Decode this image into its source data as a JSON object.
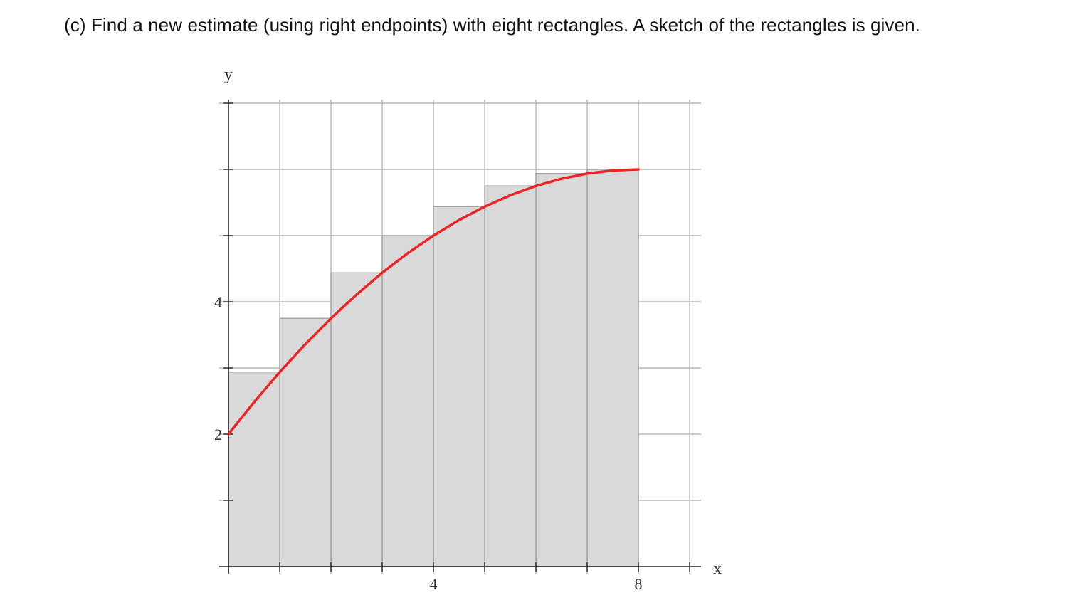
{
  "question": {
    "text": "(c) Find a new estimate (using right endpoints) with eight rectangles. A sketch of the rectangles is given."
  },
  "chart_data": {
    "type": "bar",
    "description_method": "right-endpoint Riemann sum",
    "xlabel": "x",
    "ylabel": "y",
    "xlim": [
      0,
      9
    ],
    "ylim": [
      0,
      7
    ],
    "x_ticks": [
      0,
      1,
      2,
      3,
      4,
      5,
      6,
      7,
      8,
      9
    ],
    "y_ticks": [
      0,
      1,
      2,
      3,
      4,
      5,
      6,
      7
    ],
    "x_tick_labels": [
      {
        "value": 4,
        "label": "4"
      },
      {
        "value": 8,
        "label": "8"
      }
    ],
    "y_tick_labels": [
      {
        "value": 2,
        "label": "2"
      },
      {
        "value": 4,
        "label": "4"
      }
    ],
    "grid": true,
    "rectangles": [
      {
        "x0": 0,
        "x1": 1,
        "height": 2.9375
      },
      {
        "x0": 1,
        "x1": 2,
        "height": 3.75
      },
      {
        "x0": 2,
        "x1": 3,
        "height": 4.4375
      },
      {
        "x0": 3,
        "x1": 4,
        "height": 5.0
      },
      {
        "x0": 4,
        "x1": 5,
        "height": 5.4375
      },
      {
        "x0": 5,
        "x1": 6,
        "height": 5.75
      },
      {
        "x0": 6,
        "x1": 7,
        "height": 5.9375
      },
      {
        "x0": 7,
        "x1": 8,
        "height": 6.0
      }
    ],
    "curve": {
      "points": [
        [
          0,
          2.0
        ],
        [
          0.5,
          2.484
        ],
        [
          1,
          2.938
        ],
        [
          1.5,
          3.359
        ],
        [
          2,
          3.75
        ],
        [
          2.5,
          4.109
        ],
        [
          3,
          4.438
        ],
        [
          3.5,
          4.734
        ],
        [
          4,
          5.0
        ],
        [
          4.5,
          5.234
        ],
        [
          5,
          5.438
        ],
        [
          5.5,
          5.609
        ],
        [
          6,
          5.75
        ],
        [
          6.5,
          5.859
        ],
        [
          7,
          5.938
        ],
        [
          7.5,
          5.984
        ],
        [
          8,
          6.0
        ]
      ]
    },
    "colors": {
      "curve": "#ee2222",
      "rect_fill": "#d9d9d9",
      "rect_stroke": "#a6a6a6",
      "grid": "#aaaaaa",
      "axis": "#222222"
    }
  }
}
